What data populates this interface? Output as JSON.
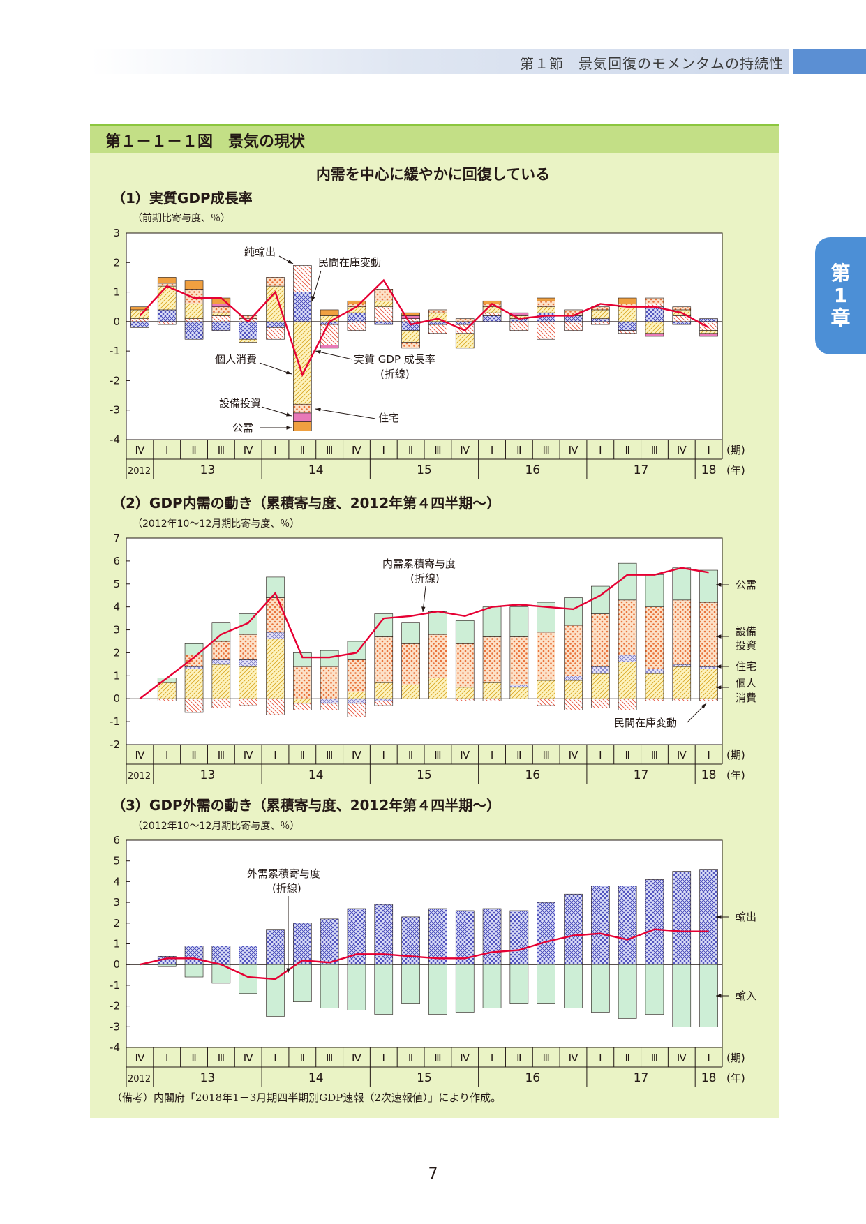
{
  "header": {
    "section": "第１節　景気回復のモメンタムの持続性"
  },
  "chapter_tab": {
    "line1": "第",
    "line2": "1",
    "line3": "章"
  },
  "figure": {
    "title": "第１－１－１図　景気の現状",
    "subtitle": "内需を中心に緩やかに回復している"
  },
  "colors": {
    "net_exports": "#5b5fc7",
    "inventory": "#e8503a",
    "consumption": "#e6c23c",
    "capex": "#e98a3a",
    "housing": "#e066a8",
    "public": "#f0a040",
    "exports": "#3c3fb5",
    "imports_fill": "#cdeed6",
    "line": "#e60033"
  },
  "axis_common": {
    "quarter_labels": [
      "Ⅳ",
      "Ⅰ",
      "Ⅱ",
      "Ⅲ",
      "Ⅳ",
      "Ⅰ",
      "Ⅱ",
      "Ⅲ",
      "Ⅳ",
      "Ⅰ",
      "Ⅱ",
      "Ⅲ",
      "Ⅳ",
      "Ⅰ",
      "Ⅱ",
      "Ⅲ",
      "Ⅳ",
      "Ⅰ",
      "Ⅱ",
      "Ⅲ",
      "Ⅳ",
      "Ⅰ"
    ],
    "year_labels": [
      "2012",
      "13",
      "14",
      "15",
      "16",
      "17",
      "18"
    ],
    "period_unit": "(期)",
    "year_unit": "(年)"
  },
  "chart_data": [
    {
      "type": "bar",
      "title": "（1）実質GDP成長率",
      "unit_note": "（前期比寄与度、％）",
      "ylim": [
        -4,
        3
      ],
      "yticks": [
        "3",
        "2",
        "1",
        "0",
        "-1",
        "-2",
        "-3",
        "-4"
      ],
      "categories": [
        "2012Ⅳ",
        "13Ⅰ",
        "13Ⅱ",
        "13Ⅲ",
        "13Ⅳ",
        "14Ⅰ",
        "14Ⅱ",
        "14Ⅲ",
        "14Ⅳ",
        "15Ⅰ",
        "15Ⅱ",
        "15Ⅲ",
        "15Ⅳ",
        "16Ⅰ",
        "16Ⅱ",
        "16Ⅲ",
        "16Ⅳ",
        "17Ⅰ",
        "17Ⅱ",
        "17Ⅲ",
        "17Ⅳ",
        "18Ⅰ"
      ],
      "series": [
        {
          "name": "純輸出",
          "values": [
            -0.2,
            0.4,
            -0.6,
            -0.3,
            -0.6,
            -0.2,
            1.0,
            -0.1,
            0.3,
            -0.1,
            -0.3,
            -0.1,
            -0.1,
            0.2,
            0.1,
            0.3,
            0.2,
            0.1,
            -0.3,
            0.5,
            -0.1,
            0.1
          ]
        },
        {
          "name": "民間在庫変動",
          "values": [
            0.1,
            -0.1,
            0.1,
            0.2,
            0.1,
            -0.4,
            0.9,
            -0.7,
            -0.3,
            0.5,
            0.1,
            -0.3,
            -0.3,
            0.1,
            -0.3,
            -0.6,
            -0.3,
            -0.1,
            -0.1,
            0.1,
            0.2,
            -0.3
          ]
        },
        {
          "name": "個人消費",
          "values": [
            0.3,
            0.8,
            0.5,
            0.1,
            -0.1,
            1.2,
            -2.8,
            0.2,
            0.2,
            0.2,
            -0.4,
            0.3,
            -0.5,
            0.2,
            0.1,
            0.2,
            0.0,
            0.3,
            0.5,
            -0.4,
            0.2,
            -0.1
          ]
        },
        {
          "name": "設備投資",
          "values": [
            0.0,
            0.1,
            0.5,
            0.2,
            0.1,
            0.3,
            -0.3,
            0.0,
            0.1,
            0.4,
            -0.2,
            0.1,
            0.1,
            0.1,
            0.0,
            0.2,
            0.2,
            0.1,
            0.1,
            0.2,
            0.1,
            0.0
          ]
        },
        {
          "name": "住宅",
          "values": [
            0.0,
            0.0,
            0.0,
            0.1,
            0.0,
            0.0,
            -0.3,
            -0.1,
            0.0,
            0.0,
            0.1,
            0.0,
            0.0,
            0.0,
            0.1,
            0.0,
            0.0,
            0.0,
            0.0,
            -0.1,
            0.0,
            -0.1
          ]
        },
        {
          "name": "公需",
          "values": [
            0.1,
            0.2,
            0.3,
            0.2,
            0.0,
            0.0,
            -0.3,
            0.2,
            0.1,
            0.0,
            0.1,
            0.0,
            0.0,
            0.1,
            0.0,
            0.1,
            0.0,
            0.0,
            0.2,
            0.0,
            0.0,
            0.0
          ]
        }
      ],
      "line": {
        "name": "実質GDP成長率",
        "values": [
          0.2,
          1.2,
          0.8,
          0.8,
          0.0,
          1.0,
          -1.8,
          0.0,
          0.5,
          1.4,
          -0.1,
          0.1,
          -0.3,
          0.6,
          0.1,
          0.2,
          0.2,
          0.6,
          0.5,
          0.5,
          0.3,
          -0.2
        ]
      },
      "annotations": {
        "net_exports": "純輸出",
        "inventory": "民間在庫変動",
        "consumption": "個人消費",
        "line1": "実質 GDP 成長率",
        "line2": "(折線)",
        "capex": "設備投資",
        "public": "公需",
        "housing": "住宅"
      }
    },
    {
      "type": "bar",
      "title": "（2）GDP内需の動き（累積寄与度、2012年第４四半期～）",
      "unit_note": "（2012年10～12月期比寄与度、％）",
      "ylim": [
        -2,
        7
      ],
      "yticks": [
        "7",
        "6",
        "5",
        "4",
        "3",
        "2",
        "1",
        "0",
        "-1",
        "-2"
      ],
      "series": [
        {
          "name": "個人消費",
          "values": [
            0.7,
            1.3,
            1.5,
            1.4,
            2.6,
            -0.2,
            0.0,
            0.3,
            0.7,
            0.6,
            0.9,
            0.5,
            0.7,
            0.5,
            0.8,
            0.8,
            1.1,
            1.6,
            1.1,
            1.4,
            1.3
          ]
        },
        {
          "name": "住宅",
          "values": [
            0.0,
            0.1,
            0.2,
            0.3,
            0.3,
            0.0,
            -0.2,
            -0.2,
            -0.1,
            0.0,
            0.0,
            0.0,
            0.0,
            0.1,
            0.0,
            0.2,
            0.3,
            0.3,
            0.2,
            0.1,
            0.1
          ]
        },
        {
          "name": "設備投資",
          "values": [
            0.0,
            0.5,
            0.8,
            1.1,
            1.5,
            1.4,
            1.4,
            1.4,
            2.0,
            1.8,
            1.9,
            1.9,
            2.0,
            2.1,
            2.1,
            2.2,
            2.3,
            2.4,
            2.7,
            2.8,
            2.8
          ]
        },
        {
          "name": "公需",
          "values": [
            0.2,
            0.5,
            0.8,
            0.9,
            0.9,
            0.6,
            0.7,
            0.8,
            1.0,
            0.9,
            1.0,
            1.0,
            1.3,
            1.3,
            1.3,
            1.2,
            1.2,
            1.6,
            1.4,
            1.4,
            1.4
          ]
        },
        {
          "name": "民間在庫変動",
          "values": [
            -0.1,
            -0.6,
            -0.4,
            -0.3,
            -0.7,
            -0.3,
            -0.3,
            -0.6,
            -0.2,
            0.0,
            0.0,
            -0.1,
            -0.1,
            0.0,
            -0.3,
            -0.5,
            -0.4,
            -0.5,
            -0.1,
            -0.1,
            -0.1
          ]
        }
      ],
      "line": {
        "name": "内需累積寄与度",
        "values": [
          0.0,
          0.9,
          1.8,
          2.8,
          3.3,
          4.6,
          1.8,
          1.8,
          2.0,
          3.5,
          3.6,
          3.8,
          3.6,
          4.0,
          4.1,
          4.0,
          3.9,
          4.5,
          5.4,
          5.4,
          5.7,
          5.5
        ]
      },
      "annotations": {
        "line1": "内需累積寄与度",
        "line2": "(折線)",
        "public": "公需",
        "capex1": "設備",
        "capex2": "投資",
        "housing": "住宅",
        "consumption1": "個人",
        "consumption2": "消費",
        "inventory": "民間在庫変動"
      }
    },
    {
      "type": "bar",
      "title": "（3）GDP外需の動き（累積寄与度、2012年第４四半期～）",
      "unit_note": "（2012年10～12月期比寄与度、％）",
      "ylim": [
        -4,
        6
      ],
      "yticks": [
        "6",
        "5",
        "4",
        "3",
        "2",
        "1",
        "0",
        "-1",
        "-2",
        "-3",
        "-4"
      ],
      "series": [
        {
          "name": "輸出",
          "values": [
            0.4,
            0.9,
            0.9,
            0.9,
            1.7,
            2.0,
            2.2,
            2.7,
            2.9,
            2.3,
            2.7,
            2.6,
            2.7,
            2.6,
            3.0,
            3.4,
            3.8,
            3.8,
            4.1,
            4.5,
            4.6
          ]
        },
        {
          "name": "輸入",
          "values": [
            -0.1,
            -0.6,
            -0.9,
            -1.4,
            -2.5,
            -1.8,
            -2.1,
            -2.2,
            -2.4,
            -1.9,
            -2.4,
            -2.3,
            -2.1,
            -1.9,
            -1.9,
            -2.1,
            -2.3,
            -2.6,
            -2.4,
            -3.0,
            -3.0
          ]
        }
      ],
      "line": {
        "name": "外需累積寄与度",
        "values": [
          0.0,
          0.3,
          0.3,
          0.0,
          -0.6,
          -0.7,
          0.2,
          0.1,
          0.5,
          0.5,
          0.4,
          0.3,
          0.3,
          0.6,
          0.7,
          1.1,
          1.4,
          1.5,
          1.2,
          1.7,
          1.6,
          1.6
        ]
      },
      "annotations": {
        "line1": "外需累積寄与度",
        "line2": "(折線)",
        "exports": "輸出",
        "imports": "輸入"
      }
    }
  ],
  "note": "（備考）内閣府「2018年1－3月期四半期別GDP速報（2次速報値）」により作成。",
  "page_number": "7"
}
